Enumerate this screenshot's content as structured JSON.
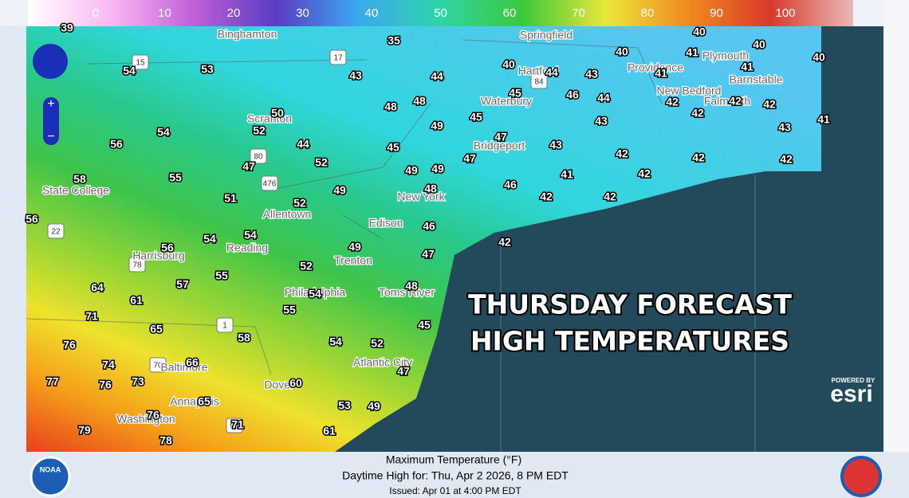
{
  "legend": {
    "ticks": [
      0,
      10,
      20,
      30,
      40,
      50,
      60,
      70,
      80,
      90,
      100
    ]
  },
  "temperatures": [
    39,
    35,
    54,
    53,
    43,
    44,
    40,
    44,
    43,
    40,
    40,
    41,
    40,
    40,
    41,
    41,
    45,
    46,
    44,
    42,
    42,
    42,
    48,
    48,
    50,
    52,
    56,
    54,
    44,
    49,
    45,
    43,
    42,
    43,
    41,
    47,
    45,
    43,
    42,
    42,
    42,
    52,
    47,
    58,
    55,
    49,
    49,
    47,
    41,
    42,
    49,
    51,
    52,
    48,
    46,
    42,
    42,
    56,
    54,
    54,
    56,
    46,
    42,
    49,
    47,
    52,
    55,
    64,
    57,
    48,
    54,
    61,
    71,
    65,
    55,
    45,
    58,
    54,
    52,
    76,
    74,
    66,
    47,
    77,
    76,
    73,
    60,
    65,
    53,
    49,
    79,
    76,
    71,
    78,
    61
  ],
  "cities": [
    "Binghamton",
    "Springfield",
    "Plymouth",
    "Hartford",
    "Providence",
    "Barnstable",
    "New Bedford",
    "Waterbury",
    "Falmouth",
    "Scranton",
    "Bridgeport",
    "State College",
    "New York",
    "Allentown",
    "Edison",
    "Reading",
    "Harrisburg",
    "Trenton",
    "Philadelphia",
    "Toms River",
    "Atlantic City",
    "Baltimore",
    "Dover",
    "Annapolis",
    "Washington"
  ],
  "highways": [
    "17",
    "15",
    "84",
    "80",
    "476",
    "22",
    "78",
    "1",
    "70",
    "95"
  ],
  "overlay": {
    "line1": "THURSDAY FORECAST",
    "line2": "HIGH TEMPERATURES"
  },
  "esri": {
    "powered": "POWERED BY",
    "brand": "esri"
  },
  "footer": {
    "title": "Maximum Temperature (°F)",
    "valid": "Daytime High for: Thu, Apr  2 2026,   8 PM EDT",
    "issued": "Issued: Apr 01 at 4:00 PM EDT",
    "noaa": "NOAA"
  }
}
